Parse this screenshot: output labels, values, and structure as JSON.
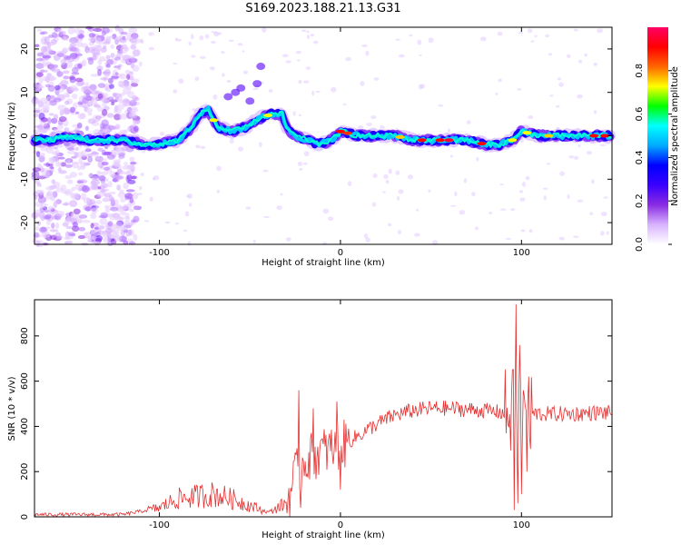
{
  "title": "S169.2023.188.21.13.G31",
  "chart_data": [
    {
      "type": "heatmap",
      "xlabel": "Height of straight line (km)",
      "ylabel": "Frequency (Hz)",
      "xlim": [
        -169,
        150
      ],
      "ylim": [
        -25,
        25
      ],
      "xticks": [
        -100,
        0,
        100
      ],
      "yticks": [
        -20,
        -10,
        0,
        10,
        20
      ],
      "colorbar": {
        "label": "Normalized spectral amplitude",
        "ticks": [
          "0.0",
          "0.2",
          "0.4",
          "0.6",
          "0.8"
        ],
        "range": [
          0,
          1
        ],
        "colors": [
          "#ffffff",
          "#d9b3ff",
          "#8a2be2",
          "#3a00ff",
          "#0000ff",
          "#00aaff",
          "#00ffff",
          "#00ff00",
          "#ffff00",
          "#ff6600",
          "#ff0000",
          "#ff0066"
        ]
      },
      "ridge": [
        {
          "x": -169,
          "f": -1
        },
        {
          "x": -160,
          "f": -1
        },
        {
          "x": -150,
          "f": 0
        },
        {
          "x": -140,
          "f": -1
        },
        {
          "x": -130,
          "f": -1
        },
        {
          "x": -120,
          "f": -1
        },
        {
          "x": -110,
          "f": -2
        },
        {
          "x": -100,
          "f": -2
        },
        {
          "x": -90,
          "f": -1
        },
        {
          "x": -82,
          "f": 2
        },
        {
          "x": -78,
          "f": 5
        },
        {
          "x": -73,
          "f": 6
        },
        {
          "x": -68,
          "f": 2
        },
        {
          "x": -60,
          "f": 1
        },
        {
          "x": -52,
          "f": 2
        },
        {
          "x": -45,
          "f": 4
        },
        {
          "x": -38,
          "f": 5
        },
        {
          "x": -32,
          "f": 5
        },
        {
          "x": -30,
          "f": 2
        },
        {
          "x": -25,
          "f": 0
        },
        {
          "x": -18,
          "f": -1
        },
        {
          "x": -12,
          "f": -2
        },
        {
          "x": -5,
          "f": -1
        },
        {
          "x": 0,
          "f": 1
        },
        {
          "x": 10,
          "f": 0
        },
        {
          "x": 20,
          "f": 0
        },
        {
          "x": 30,
          "f": 0
        },
        {
          "x": 40,
          "f": -1
        },
        {
          "x": 50,
          "f": -1
        },
        {
          "x": 60,
          "f": -1
        },
        {
          "x": 70,
          "f": -1
        },
        {
          "x": 80,
          "f": -2
        },
        {
          "x": 88,
          "f": -2
        },
        {
          "x": 95,
          "f": -1
        },
        {
          "x": 100,
          "f": 1
        },
        {
          "x": 110,
          "f": 0
        },
        {
          "x": 120,
          "f": 0
        },
        {
          "x": 130,
          "f": 0
        },
        {
          "x": 140,
          "f": 0
        },
        {
          "x": 150,
          "f": 0
        }
      ]
    },
    {
      "type": "line",
      "xlabel": "Height of straight line (km)",
      "ylabel": "SNR (10 * v/v)",
      "xlim": [
        -169,
        150
      ],
      "ylim": [
        0,
        960
      ],
      "xticks": [
        -100,
        0,
        100
      ],
      "yticks": [
        0,
        200,
        400,
        600,
        800
      ],
      "color": "#e53030",
      "envelope": [
        {
          "x": -169,
          "y": 10
        },
        {
          "x": -120,
          "y": 10
        },
        {
          "x": -100,
          "y": 40
        },
        {
          "x": -90,
          "y": 80
        },
        {
          "x": -80,
          "y": 90
        },
        {
          "x": -70,
          "y": 100
        },
        {
          "x": -60,
          "y": 80
        },
        {
          "x": -50,
          "y": 50
        },
        {
          "x": -40,
          "y": 20
        },
        {
          "x": -30,
          "y": 60
        },
        {
          "x": -25,
          "y": 180
        },
        {
          "x": -20,
          "y": 250
        },
        {
          "x": -10,
          "y": 290
        },
        {
          "x": 0,
          "y": 310
        },
        {
          "x": 10,
          "y": 360
        },
        {
          "x": 20,
          "y": 410
        },
        {
          "x": 30,
          "y": 450
        },
        {
          "x": 40,
          "y": 470
        },
        {
          "x": 50,
          "y": 480
        },
        {
          "x": 60,
          "y": 480
        },
        {
          "x": 70,
          "y": 475
        },
        {
          "x": 80,
          "y": 470
        },
        {
          "x": 90,
          "y": 460
        },
        {
          "x": 100,
          "y": 460
        },
        {
          "x": 110,
          "y": 455
        },
        {
          "x": 120,
          "y": 455
        },
        {
          "x": 130,
          "y": 455
        },
        {
          "x": 140,
          "y": 460
        },
        {
          "x": 150,
          "y": 460
        }
      ],
      "spikes": [
        {
          "x": -23,
          "y": 560
        },
        {
          "x": -22,
          "y": 40
        },
        {
          "x": -15,
          "y": 480
        },
        {
          "x": -2,
          "y": 510
        },
        {
          "x": 0,
          "y": 120
        },
        {
          "x": 95,
          "y": 650
        },
        {
          "x": 96,
          "y": 30
        },
        {
          "x": 97,
          "y": 940
        },
        {
          "x": 98,
          "y": 60
        },
        {
          "x": 99,
          "y": 760
        },
        {
          "x": 100,
          "y": 100
        },
        {
          "x": 101,
          "y": 560
        },
        {
          "x": 103,
          "y": 200
        },
        {
          "x": 104,
          "y": 620
        },
        {
          "x": 105,
          "y": 300
        }
      ]
    }
  ]
}
